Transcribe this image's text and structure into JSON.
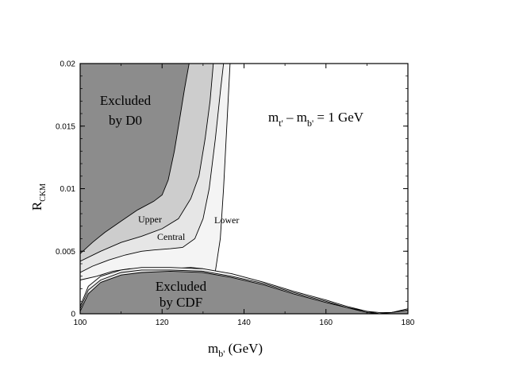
{
  "chart_data": {
    "type": "area",
    "xlim": [
      100,
      180
    ],
    "ylim": [
      0,
      0.02
    ],
    "x_ticks": [
      "100",
      "120",
      "140",
      "160",
      "180"
    ],
    "y_ticks": [
      "0",
      "0.005",
      "0.01",
      "0.015",
      "0.02"
    ],
    "xlabel": {
      "main": "m",
      "sub": "b'",
      "unit": " (GeV)"
    },
    "ylabel": {
      "main": "R",
      "sub": "CKM"
    },
    "annotation": {
      "a": "m",
      "a_sub": "t'",
      "op": " – m",
      "b_sub": "b'",
      "rhs": " = 1 GeV"
    },
    "region_labels": {
      "d0_line1": "Excluded",
      "d0_line2": "by D0",
      "cdf_line1": "Excluded",
      "cdf_line2": "by CDF",
      "upper": "Upper",
      "central": "Central",
      "lower": "Lower"
    },
    "colors": {
      "excluded": "#8c8c8c",
      "upper_band": "#cdcdcd",
      "central_band": "#e6e6e6",
      "lower_band": "#f4f4f4"
    },
    "excluded_d0_boundary": [
      [
        100,
        0.0048
      ],
      [
        103,
        0.0057
      ],
      [
        106,
        0.0065
      ],
      [
        110,
        0.0074
      ],
      [
        114,
        0.0083
      ],
      [
        118,
        0.009
      ],
      [
        120,
        0.0095
      ],
      [
        121.5,
        0.0107
      ],
      [
        123,
        0.013
      ],
      [
        124.5,
        0.016
      ],
      [
        125.5,
        0.018
      ],
      [
        126.6,
        0.02
      ]
    ],
    "upper_boundary": [
      [
        100,
        0.0042
      ],
      [
        105,
        0.005
      ],
      [
        110,
        0.0057
      ],
      [
        115,
        0.0062
      ],
      [
        120,
        0.0068
      ],
      [
        124,
        0.0076
      ],
      [
        127,
        0.0092
      ],
      [
        129,
        0.011
      ],
      [
        130.5,
        0.014
      ],
      [
        131.7,
        0.017
      ],
      [
        132.5,
        0.02
      ]
    ],
    "central_boundary": [
      [
        100,
        0.0033
      ],
      [
        103,
        0.0038
      ],
      [
        107,
        0.0043
      ],
      [
        111,
        0.0047
      ],
      [
        115,
        0.005
      ],
      [
        118,
        0.0051
      ],
      [
        122,
        0.0052
      ],
      [
        125,
        0.0053
      ],
      [
        128,
        0.006
      ],
      [
        130,
        0.0076
      ],
      [
        131.5,
        0.01
      ],
      [
        133,
        0.014
      ],
      [
        134.3,
        0.018
      ],
      [
        135,
        0.02
      ]
    ],
    "lower_boundary": [
      [
        100,
        0.0027
      ],
      [
        104,
        0.003
      ],
      [
        108,
        0.0034
      ],
      [
        112,
        0.0036
      ],
      [
        116,
        0.0036
      ],
      [
        122,
        0.0036
      ],
      [
        127,
        0.0037
      ],
      [
        130,
        0.0036
      ],
      [
        132,
        0.0033
      ],
      [
        133,
        0.0034
      ],
      [
        134.2,
        0.006
      ],
      [
        135,
        0.01
      ],
      [
        135.8,
        0.015
      ],
      [
        136.6,
        0.02
      ]
    ],
    "upper_cdf_curve": [
      [
        100,
        0.0002
      ],
      [
        102,
        0.0016
      ],
      [
        105,
        0.0025
      ],
      [
        110,
        0.0031
      ],
      [
        115,
        0.0033
      ],
      [
        122,
        0.0034
      ],
      [
        130,
        0.0033
      ],
      [
        137,
        0.0029
      ],
      [
        145,
        0.0023
      ],
      [
        152,
        0.0016
      ],
      [
        160,
        0.0009
      ],
      [
        165,
        0.0005
      ],
      [
        170,
        0.0001
      ],
      [
        173,
        0.0
      ],
      [
        176,
        0.0001
      ],
      [
        180,
        0.0003
      ]
    ],
    "central_cdf_curve": [
      [
        100,
        0.0004
      ],
      [
        102,
        0.0019
      ],
      [
        105,
        0.0027
      ],
      [
        110,
        0.0033
      ],
      [
        115,
        0.0035
      ],
      [
        122,
        0.0035
      ],
      [
        130,
        0.0034
      ],
      [
        137,
        0.003
      ],
      [
        145,
        0.0024
      ],
      [
        152,
        0.0017
      ],
      [
        160,
        0.001
      ],
      [
        165,
        0.0005
      ],
      [
        170,
        0.0002
      ],
      [
        173,
        0.0
      ],
      [
        176,
        0.0001
      ],
      [
        180,
        0.0003
      ]
    ],
    "lower_cdf_curve": [
      [
        100,
        0.0006
      ],
      [
        102,
        0.0022
      ],
      [
        105,
        0.003
      ],
      [
        110,
        0.0035
      ],
      [
        115,
        0.0037
      ],
      [
        122,
        0.0037
      ],
      [
        130,
        0.0036
      ],
      [
        137,
        0.0032
      ],
      [
        145,
        0.0025
      ],
      [
        152,
        0.0018
      ],
      [
        160,
        0.0011
      ],
      [
        165,
        0.0006
      ],
      [
        170,
        0.0002
      ],
      [
        173,
        0.0001
      ],
      [
        176,
        0.0001
      ],
      [
        180,
        0.0004
      ]
    ]
  }
}
